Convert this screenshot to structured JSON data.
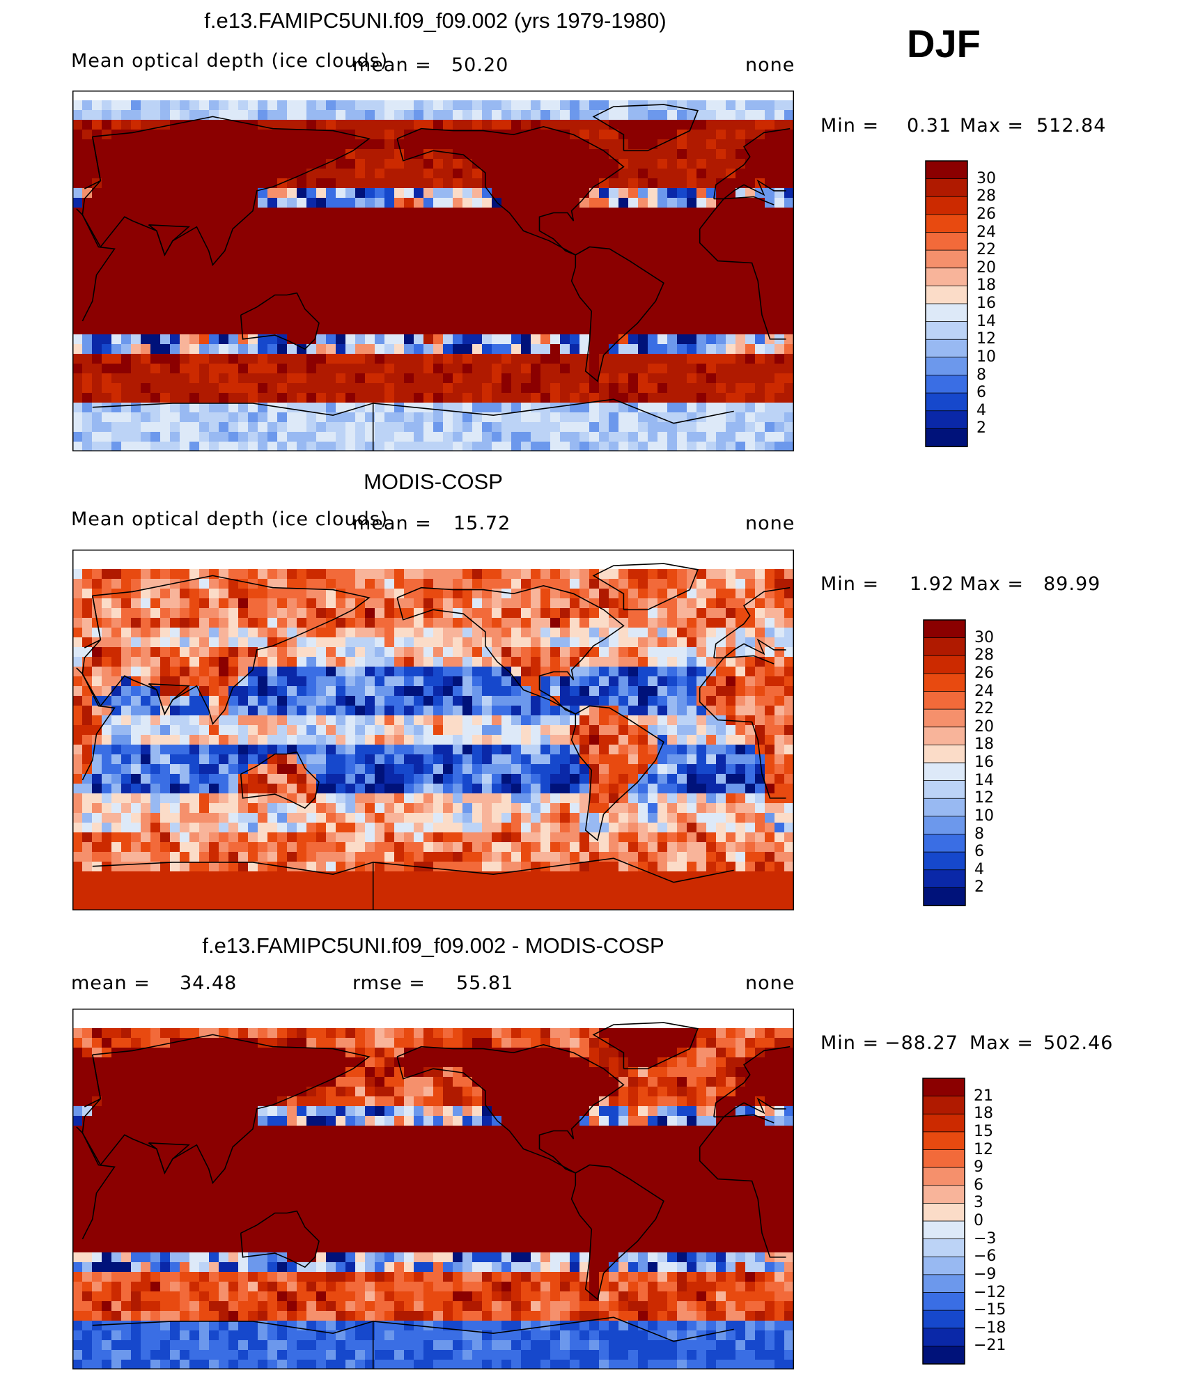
{
  "season": "DJF",
  "panels": [
    {
      "title": "f.e13.FAMIPC5UNI.f09_f09.002 (yrs 1979-1980)",
      "left_label": "Mean optical depth (ice clouds)",
      "center_label": "mean =",
      "center_value": "50.20",
      "units": "none",
      "minmax_label": "Min =",
      "min": "0.31",
      "max_label": "Max =",
      "max": "512.84",
      "colorbar_labels": [
        "30",
        "28",
        "26",
        "24",
        "22",
        "20",
        "18",
        "16",
        "14",
        "12",
        "10",
        "8",
        "6",
        "4",
        "2"
      ],
      "colorbar_colors": [
        "#8b0000",
        "#b01a00",
        "#cc2a00",
        "#e84a10",
        "#f26a3a",
        "#f5906c",
        "#f8b49a",
        "#fbdcc8",
        "#dde9f8",
        "#bcd3f6",
        "#98b9f2",
        "#6c98ec",
        "#3a6ee4",
        "#1648cc",
        "#0a28a8",
        "#00127a"
      ],
      "field": "model"
    },
    {
      "title": "MODIS-COSP",
      "left_label": "Mean optical depth (ice clouds)",
      "center_label": "mean =",
      "center_value": "15.72",
      "units": "none",
      "minmax_label": "Min =",
      "min": "1.92",
      "max_label": "Max =",
      "max": "89.99",
      "colorbar_labels": [
        "30",
        "28",
        "26",
        "24",
        "22",
        "20",
        "18",
        "16",
        "14",
        "12",
        "10",
        "8",
        "6",
        "4",
        "2"
      ],
      "colorbar_colors": [
        "#8b0000",
        "#b01a00",
        "#cc2a00",
        "#e84a10",
        "#f26a3a",
        "#f5906c",
        "#f8b49a",
        "#fbdcc8",
        "#dde9f8",
        "#bcd3f6",
        "#98b9f2",
        "#6c98ec",
        "#3a6ee4",
        "#1648cc",
        "#0a28a8",
        "#00127a"
      ],
      "field": "obs"
    },
    {
      "title": "f.e13.FAMIPC5UNI.f09_f09.002 - MODIS-COSP",
      "left_label": "mean =",
      "left_value": "34.48",
      "center_label": "rmse =",
      "center_value": "55.81",
      "units": "none",
      "minmax_label": "Min =",
      "min": "−88.27",
      "max_label": "Max =",
      "max": "502.46",
      "colorbar_labels": [
        "21",
        "18",
        "15",
        "12",
        "9",
        "6",
        "3",
        "0",
        "−3",
        "−6",
        "−9",
        "−12",
        "−15",
        "−18",
        "−21"
      ],
      "colorbar_colors": [
        "#8b0000",
        "#b01a00",
        "#cc2a00",
        "#e84a10",
        "#f26a3a",
        "#f5906c",
        "#f8b49a",
        "#fbdcc8",
        "#dde9f8",
        "#bcd3f6",
        "#98b9f2",
        "#6c98ec",
        "#3a6ee4",
        "#1648cc",
        "#0a28a8",
        "#00127a"
      ],
      "field": "diff"
    }
  ]
}
